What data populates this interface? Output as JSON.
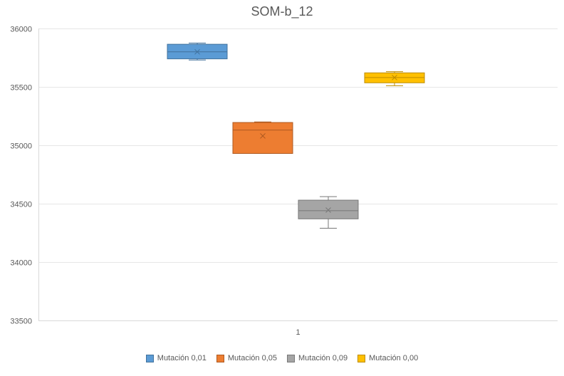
{
  "chart_data": {
    "type": "box",
    "title": "SOM-b_12",
    "xlabel": "",
    "ylabel": "",
    "categories": [
      "1"
    ],
    "ylim": [
      33500,
      36000
    ],
    "yticks": [
      33500,
      34000,
      34500,
      35000,
      35500,
      36000
    ],
    "grid": true,
    "legend_position": "bottom",
    "series": [
      {
        "name": "Mutación 0,01",
        "color": "#5b9bd5",
        "stroke": "#41719c",
        "min": 35730,
        "q1": 35740,
        "median": 35800,
        "q3": 35865,
        "max": 35875,
        "mean": 35800
      },
      {
        "name": "Mutación 0,05",
        "color": "#ed7d31",
        "stroke": "#ae5a21",
        "min": 34930,
        "q1": 34930,
        "median": 35130,
        "q3": 35195,
        "max": 35200,
        "mean": 35080
      },
      {
        "name": "Mutación 0,09",
        "color": "#a5a5a5",
        "stroke": "#787878",
        "min": 34290,
        "q1": 34370,
        "median": 34440,
        "q3": 34530,
        "max": 34560,
        "mean": 34445
      },
      {
        "name": "Mutación 0,00",
        "color": "#ffc000",
        "stroke": "#bc8c00",
        "min": 35510,
        "q1": 35535,
        "median": 35580,
        "q3": 35620,
        "max": 35630,
        "mean": 35580
      }
    ]
  }
}
